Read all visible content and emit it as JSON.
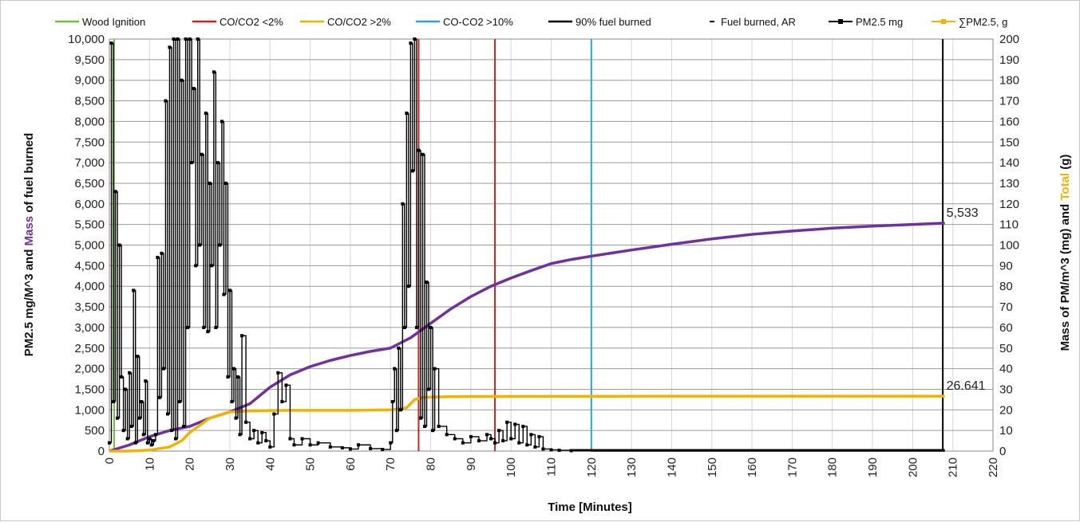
{
  "chart_data": {
    "type": "line",
    "xlabel": "Time [Minutes]",
    "ylabel_left_parts": [
      "PM2.5 mg/M^3  and  ",
      "Mass",
      " of fuel burned"
    ],
    "ylabel_right_parts": [
      "Mass of PM/m^3 (mg)  and  ",
      "Total",
      " (g)"
    ],
    "xlim": [
      0,
      220
    ],
    "ylim_left": [
      0,
      10000
    ],
    "ylim_right": [
      0,
      200
    ],
    "x_ticks": [
      "0",
      "10",
      "20",
      "30",
      "40",
      "50",
      "60",
      "70",
      "80",
      "90",
      "100",
      "110",
      "120",
      "130",
      "140",
      "150",
      "160",
      "170",
      "180",
      "190",
      "200",
      "210",
      "220"
    ],
    "y_left_ticks": [
      "0",
      "500",
      "1,000",
      "1,500",
      "2,000",
      "2,500",
      "3,000",
      "3,500",
      "4,000",
      "4,500",
      "5,000",
      "5,500",
      "6,000",
      "6,500",
      "7,000",
      "7,500",
      "8,000",
      "8,500",
      "9,000",
      "9,500",
      "10,000"
    ],
    "y_right_ticks": [
      "0",
      "10",
      "20",
      "30",
      "40",
      "50",
      "60",
      "70",
      "80",
      "90",
      "100",
      "110",
      "120",
      "130",
      "140",
      "150",
      "160",
      "170",
      "180",
      "190",
      "200"
    ],
    "legend": [
      {
        "label": "Wood Ignition",
        "color": "#70c040",
        "style": "line"
      },
      {
        "label": "CO/CO2 <2%",
        "color": "#cc2222",
        "style": "line"
      },
      {
        "label": "CO/CO2 >2%",
        "color": "#f0b400",
        "style": "line"
      },
      {
        "label": "CO-CO2 >10%",
        "color": "#2aa6c8",
        "style": "line"
      },
      {
        "label": "90% fuel burned",
        "color": "#000000",
        "style": "line"
      },
      {
        "label": "Fuel burned, AR",
        "color": "#000000",
        "style": "dash"
      },
      {
        "label": "PM2.5 mg",
        "color": "#000000",
        "style": "marker"
      },
      {
        "label": "∑PM2.5, g",
        "color": "#f0b400",
        "style": "marker"
      }
    ],
    "vertical_lines": [
      {
        "name": "Wood Ignition",
        "x": 1.2,
        "color": "#70c040"
      },
      {
        "name": "CO/CO2 <2%",
        "x": 77,
        "color": "#cc2222"
      },
      {
        "name": "CO/CO2 <2%",
        "x": 96,
        "color": "#cc2222"
      },
      {
        "name": "CO-CO2 >10%",
        "x": 120,
        "color": "#2aa6c8"
      },
      {
        "name": "90% fuel burned",
        "x": 207.5,
        "color": "#000000"
      }
    ],
    "series": [
      {
        "name": "Fuel burned, AR",
        "axis": "left",
        "color": "#7030a0",
        "x": [
          0,
          5,
          10,
          15,
          20,
          25,
          30,
          35,
          40,
          45,
          50,
          55,
          60,
          65,
          70,
          75,
          80,
          85,
          90,
          95,
          100,
          105,
          110,
          115,
          120,
          130,
          140,
          150,
          160,
          170,
          180,
          190,
          200,
          208
        ],
        "y": [
          0,
          150,
          350,
          500,
          600,
          800,
          950,
          1150,
          1550,
          1850,
          2050,
          2200,
          2320,
          2420,
          2500,
          2750,
          3100,
          3450,
          3750,
          4000,
          4200,
          4380,
          4550,
          4650,
          4730,
          4880,
          5020,
          5150,
          5260,
          5340,
          5410,
          5460,
          5500,
          5533
        ]
      },
      {
        "name": "∑PM2.5, g",
        "axis": "right",
        "color": "#f0b400",
        "x": [
          0,
          5,
          10,
          15,
          18,
          20,
          25,
          30,
          35,
          40,
          45,
          50,
          60,
          70,
          74,
          76,
          78,
          80,
          85,
          90,
          100,
          110,
          120,
          140,
          160,
          180,
          200,
          208
        ],
        "y": [
          0,
          0,
          0.5,
          2,
          5,
          9,
          16,
          19,
          19.5,
          19.7,
          19.8,
          19.8,
          19.8,
          20,
          21,
          25,
          26,
          26.2,
          26.4,
          26.5,
          26.55,
          26.58,
          26.6,
          26.62,
          26.63,
          26.635,
          26.64,
          26.641
        ]
      },
      {
        "name": "PM2.5 mg",
        "axis": "left",
        "color": "#000000",
        "x": [
          0,
          0.5,
          1,
          1.5,
          2,
          2.5,
          3,
          3.5,
          4,
          4.5,
          5,
          5.5,
          6,
          6.5,
          7,
          7.5,
          8,
          8.5,
          9,
          9.5,
          10,
          10.5,
          11,
          11.5,
          12,
          12.5,
          13,
          13.5,
          14,
          14.5,
          15,
          15.5,
          16,
          16.5,
          17,
          17.5,
          18,
          18.5,
          19,
          19.5,
          20,
          20.5,
          21,
          21.5,
          22,
          22.5,
          23,
          23.5,
          24,
          24.5,
          25,
          25.5,
          26,
          26.5,
          27,
          27.5,
          28,
          28.5,
          29,
          29.5,
          30,
          30.5,
          31,
          31.5,
          32,
          32.5,
          33,
          34,
          35,
          36,
          37,
          38,
          39,
          40,
          41,
          42,
          43,
          44,
          45,
          46,
          48,
          50,
          52,
          55,
          58,
          60,
          62,
          65,
          68,
          70,
          70.5,
          71,
          71.5,
          72,
          72.5,
          73,
          73.5,
          74,
          74.5,
          75,
          75.5,
          76,
          76.5,
          77,
          77.5,
          78,
          78.5,
          79,
          79.5,
          80,
          80.5,
          81,
          82,
          84,
          86,
          88,
          90,
          92,
          94,
          95,
          96,
          97,
          98,
          99,
          100,
          101,
          102,
          103,
          104,
          105,
          106,
          107,
          108,
          110,
          112,
          115,
          120,
          130,
          140,
          150,
          160,
          170,
          180,
          190,
          200,
          208
        ],
        "y": [
          200,
          9900,
          1200,
          6300,
          800,
          5000,
          1800,
          500,
          1500,
          300,
          1900,
          600,
          3900,
          200,
          2300,
          800,
          1200,
          400,
          1700,
          200,
          300,
          150,
          250,
          400,
          4700,
          1300,
          4800,
          2000,
          8500,
          900,
          9800,
          500,
          10000,
          300,
          10000,
          1200,
          9000,
          600,
          10000,
          3000,
          10000,
          7000,
          8800,
          4500,
          10000,
          5000,
          7200,
          3000,
          8200,
          2900,
          6500,
          4500,
          9200,
          3000,
          7000,
          5000,
          8000,
          3800,
          6500,
          1800,
          3900,
          1200,
          2000,
          800,
          1800,
          400,
          2800,
          700,
          300,
          500,
          200,
          450,
          250,
          100,
          900,
          1900,
          1200,
          1600,
          300,
          150,
          300,
          150,
          200,
          100,
          80,
          50,
          150,
          60,
          40,
          200,
          1200,
          2000,
          500,
          2500,
          1000,
          6000,
          3000,
          8200,
          4000,
          9900,
          6800,
          10000,
          3000,
          7300,
          800,
          7200,
          600,
          4100,
          1500,
          3000,
          500,
          2000,
          600,
          400,
          300,
          200,
          350,
          250,
          400,
          300,
          200,
          500,
          250,
          700,
          300,
          650,
          200,
          600,
          150,
          400,
          100,
          350,
          50,
          30,
          20,
          10,
          0,
          0,
          0,
          0,
          0,
          0,
          0,
          0,
          0,
          0
        ]
      }
    ],
    "annotations": [
      {
        "text": "5,533",
        "x": 208,
        "y": 5533,
        "axis": "left"
      },
      {
        "text": "26.641",
        "x": 208,
        "y": 26.641,
        "axis": "right"
      }
    ]
  }
}
